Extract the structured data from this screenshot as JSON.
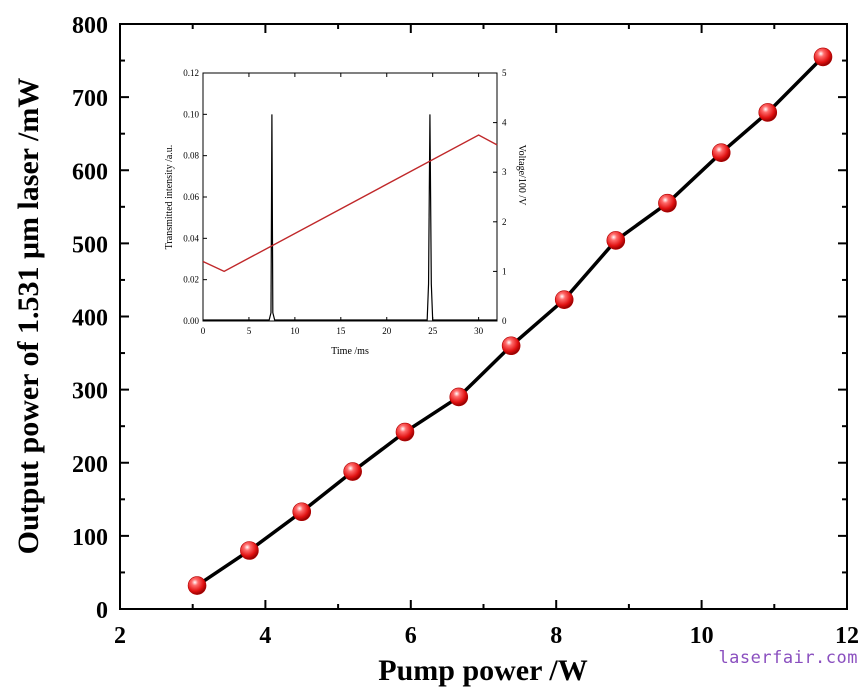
{
  "chart_data": [
    {
      "type": "line",
      "title": "",
      "xlabel": "Pump power /W",
      "ylabel": "Output power of 1.531 μm laser /mW",
      "xlim": [
        2,
        12
      ],
      "ylim": [
        0,
        800
      ],
      "xticks": [
        2,
        4,
        6,
        8,
        10,
        12
      ],
      "yticks": [
        0,
        100,
        200,
        300,
        400,
        500,
        600,
        700,
        800
      ],
      "series": [
        {
          "name": "Output power",
          "color": "#e01010",
          "line_color": "#000000",
          "x": [
            3.06,
            3.78,
            4.5,
            5.2,
            5.92,
            6.66,
            7.38,
            8.11,
            8.82,
            9.53,
            10.27,
            10.91,
            11.67
          ],
          "y": [
            32,
            80,
            133,
            188,
            242,
            290,
            360,
            423,
            504,
            555,
            624,
            679,
            755
          ]
        }
      ]
    },
    {
      "type": "line",
      "title": "",
      "xlabel": "Time /ms",
      "ylabel": "Transmitted intensity /a.u.",
      "y2label": "Voltage/100 /V",
      "xlim": [
        0,
        32
      ],
      "ylim": [
        0,
        0.12
      ],
      "y2lim": [
        0,
        5
      ],
      "xticks": [
        0,
        5,
        10,
        15,
        20,
        25,
        30
      ],
      "yticks": [
        0.0,
        0.02,
        0.04,
        0.06,
        0.08,
        0.1,
        0.12
      ],
      "y2ticks": [
        0,
        1,
        2,
        3,
        4,
        5
      ],
      "series": [
        {
          "name": "Transmitted intensity",
          "axis": "left",
          "color": "#000000",
          "peaks": [
            {
              "x": 7.5,
              "y": 0.1
            },
            {
              "x": 24.7,
              "y": 0.1
            }
          ],
          "x": [
            0,
            7.2,
            7.4,
            7.5,
            7.6,
            7.8,
            24.4,
            24.55,
            24.7,
            24.85,
            25.0,
            32
          ],
          "y": [
            0.0005,
            0.0005,
            0.004,
            0.1,
            0.004,
            0.0005,
            0.0005,
            0.018,
            0.1,
            0.018,
            0.0005,
            0.0005
          ]
        },
        {
          "name": "Voltage",
          "axis": "right",
          "color": "#c0282a",
          "x": [
            0,
            2.3,
            30,
            32
          ],
          "y": [
            1.2,
            1.0,
            3.75,
            3.55
          ]
        }
      ]
    }
  ],
  "watermark": "laserfair.com"
}
